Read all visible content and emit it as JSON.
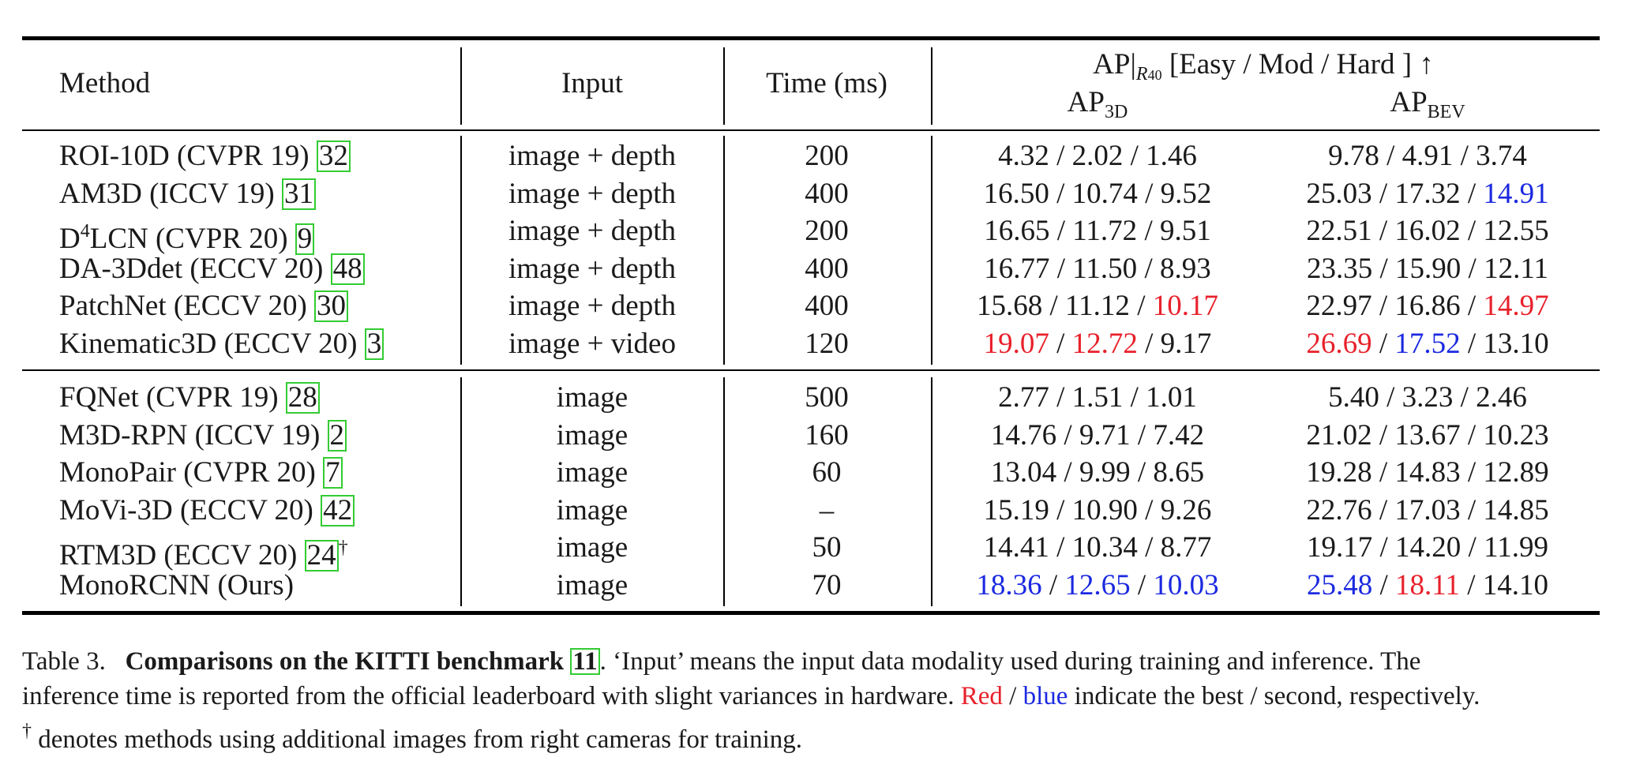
{
  "table": {
    "headers": {
      "method": "Method",
      "input": "Input",
      "time": "Time (ms)",
      "ap_main": "AP",
      "ap_sub": "R",
      "ap_sub_index": "40",
      "ap_bracket": "[Easy / Mod / Hard ] ↑",
      "ap3d": "AP",
      "ap3d_sub": "3D",
      "apbev": "AP",
      "apbev_sub": "BEV"
    },
    "group1": [
      {
        "name": "ROI-10D (CVPR 19) ",
        "name_sup": "",
        "cite": "32",
        "dagger": "",
        "input": "image + depth",
        "time": "200",
        "ap3d": [
          {
            "v": "4.32",
            "c": ""
          },
          {
            "v": "2.02",
            "c": ""
          },
          {
            "v": "1.46",
            "c": ""
          }
        ],
        "apbev": [
          {
            "v": "9.78",
            "c": ""
          },
          {
            "v": "4.91",
            "c": ""
          },
          {
            "v": "3.74",
            "c": ""
          }
        ]
      },
      {
        "name": "AM3D (ICCV 19) ",
        "name_sup": "",
        "cite": "31",
        "dagger": "",
        "input": "image + depth",
        "time": "400",
        "ap3d": [
          {
            "v": "16.50",
            "c": ""
          },
          {
            "v": "10.74",
            "c": ""
          },
          {
            "v": "9.52",
            "c": ""
          }
        ],
        "apbev": [
          {
            "v": "25.03",
            "c": ""
          },
          {
            "v": "17.32",
            "c": ""
          },
          {
            "v": "14.91",
            "c": "blue"
          }
        ]
      },
      {
        "name": "D",
        "name_sup": "4",
        "name_rest": "LCN (CVPR 20) ",
        "cite": "9",
        "dagger": "",
        "input": "image + depth",
        "time": "200",
        "ap3d": [
          {
            "v": "16.65",
            "c": ""
          },
          {
            "v": "11.72",
            "c": ""
          },
          {
            "v": "9.51",
            "c": ""
          }
        ],
        "apbev": [
          {
            "v": "22.51",
            "c": ""
          },
          {
            "v": "16.02",
            "c": ""
          },
          {
            "v": "12.55",
            "c": ""
          }
        ]
      },
      {
        "name": "DA-3Ddet (ECCV 20) ",
        "name_sup": "",
        "cite": "48",
        "dagger": "",
        "input": "image + depth",
        "time": "400",
        "ap3d": [
          {
            "v": "16.77",
            "c": ""
          },
          {
            "v": "11.50",
            "c": ""
          },
          {
            "v": "8.93",
            "c": ""
          }
        ],
        "apbev": [
          {
            "v": "23.35",
            "c": ""
          },
          {
            "v": "15.90",
            "c": ""
          },
          {
            "v": "12.11",
            "c": ""
          }
        ]
      },
      {
        "name": "PatchNet (ECCV 20) ",
        "name_sup": "",
        "cite": "30",
        "dagger": "",
        "input": "image + depth",
        "time": "400",
        "ap3d": [
          {
            "v": "15.68",
            "c": ""
          },
          {
            "v": "11.12",
            "c": ""
          },
          {
            "v": "10.17",
            "c": "red"
          }
        ],
        "apbev": [
          {
            "v": "22.97",
            "c": ""
          },
          {
            "v": "16.86",
            "c": ""
          },
          {
            "v": "14.97",
            "c": "red"
          }
        ]
      },
      {
        "name": "Kinematic3D (ECCV 20) ",
        "name_sup": "",
        "cite": "3",
        "dagger": "",
        "input": "image + video",
        "time": "120",
        "ap3d": [
          {
            "v": "19.07",
            "c": "red"
          },
          {
            "v": "12.72",
            "c": "red"
          },
          {
            "v": "9.17",
            "c": ""
          }
        ],
        "apbev": [
          {
            "v": "26.69",
            "c": "red"
          },
          {
            "v": "17.52",
            "c": "blue"
          },
          {
            "v": "13.10",
            "c": ""
          }
        ]
      }
    ],
    "group2": [
      {
        "name": "FQNet (CVPR 19) ",
        "name_sup": "",
        "cite": "28",
        "dagger": "",
        "input": "image",
        "time": "500",
        "ap3d": [
          {
            "v": "2.77",
            "c": ""
          },
          {
            "v": "1.51",
            "c": ""
          },
          {
            "v": "1.01",
            "c": ""
          }
        ],
        "apbev": [
          {
            "v": "5.40",
            "c": ""
          },
          {
            "v": "3.23",
            "c": ""
          },
          {
            "v": "2.46",
            "c": ""
          }
        ]
      },
      {
        "name": "M3D-RPN (ICCV 19) ",
        "name_sup": "",
        "cite": "2",
        "dagger": "",
        "input": "image",
        "time": "160",
        "ap3d": [
          {
            "v": "14.76",
            "c": ""
          },
          {
            "v": "9.71",
            "c": ""
          },
          {
            "v": "7.42",
            "c": ""
          }
        ],
        "apbev": [
          {
            "v": "21.02",
            "c": ""
          },
          {
            "v": "13.67",
            "c": ""
          },
          {
            "v": "10.23",
            "c": ""
          }
        ]
      },
      {
        "name": "MonoPair (CVPR 20) ",
        "name_sup": "",
        "cite": "7",
        "dagger": "",
        "input": "image",
        "time": "60",
        "ap3d": [
          {
            "v": "13.04",
            "c": ""
          },
          {
            "v": "9.99",
            "c": ""
          },
          {
            "v": "8.65",
            "c": ""
          }
        ],
        "apbev": [
          {
            "v": "19.28",
            "c": ""
          },
          {
            "v": "14.83",
            "c": ""
          },
          {
            "v": "12.89",
            "c": ""
          }
        ]
      },
      {
        "name": "MoVi-3D (ECCV 20) ",
        "name_sup": "",
        "cite": "42",
        "dagger": "",
        "input": "image",
        "time": "–",
        "ap3d": [
          {
            "v": "15.19",
            "c": ""
          },
          {
            "v": "10.90",
            "c": ""
          },
          {
            "v": "9.26",
            "c": ""
          }
        ],
        "apbev": [
          {
            "v": "22.76",
            "c": ""
          },
          {
            "v": "17.03",
            "c": ""
          },
          {
            "v": "14.85",
            "c": ""
          }
        ]
      },
      {
        "name": "RTM3D (ECCV 20) ",
        "name_sup": "",
        "cite": "24",
        "dagger": "†",
        "input": "image",
        "time": "50",
        "ap3d": [
          {
            "v": "14.41",
            "c": ""
          },
          {
            "v": "10.34",
            "c": ""
          },
          {
            "v": "8.77",
            "c": ""
          }
        ],
        "apbev": [
          {
            "v": "19.17",
            "c": ""
          },
          {
            "v": "14.20",
            "c": ""
          },
          {
            "v": "11.99",
            "c": ""
          }
        ]
      },
      {
        "name": "MonoRCNN (Ours)",
        "name_sup": "",
        "cite": "",
        "dagger": "",
        "input": "image",
        "time": "70",
        "ap3d": [
          {
            "v": "18.36",
            "c": "blue"
          },
          {
            "v": "12.65",
            "c": "blue"
          },
          {
            "v": "10.03",
            "c": "blue"
          }
        ],
        "apbev": [
          {
            "v": "25.48",
            "c": "blue"
          },
          {
            "v": "18.11",
            "c": "red"
          },
          {
            "v": "14.10",
            "c": ""
          }
        ]
      }
    ]
  },
  "caption": {
    "label": "Table 3.",
    "bold": "Comparisons on the KITTI benchmark ",
    "bold_cite": "11",
    "line1_rest": ". ‘Input’ means the input data modality used during training and inference. The",
    "line2_a": "inference time is reported from the official leaderboard with slight variances in hardware. ",
    "red_word": "Red",
    "sep": " / ",
    "blue_word": "blue",
    "line2_b": " indicate the best / second, respectively.",
    "dagger": "†",
    "line3": " denotes methods using additional images from right cameras for training."
  },
  "colors": {
    "red": "#e8212b",
    "blue": "#1b29e0",
    "cite_box": "#33cc33"
  }
}
